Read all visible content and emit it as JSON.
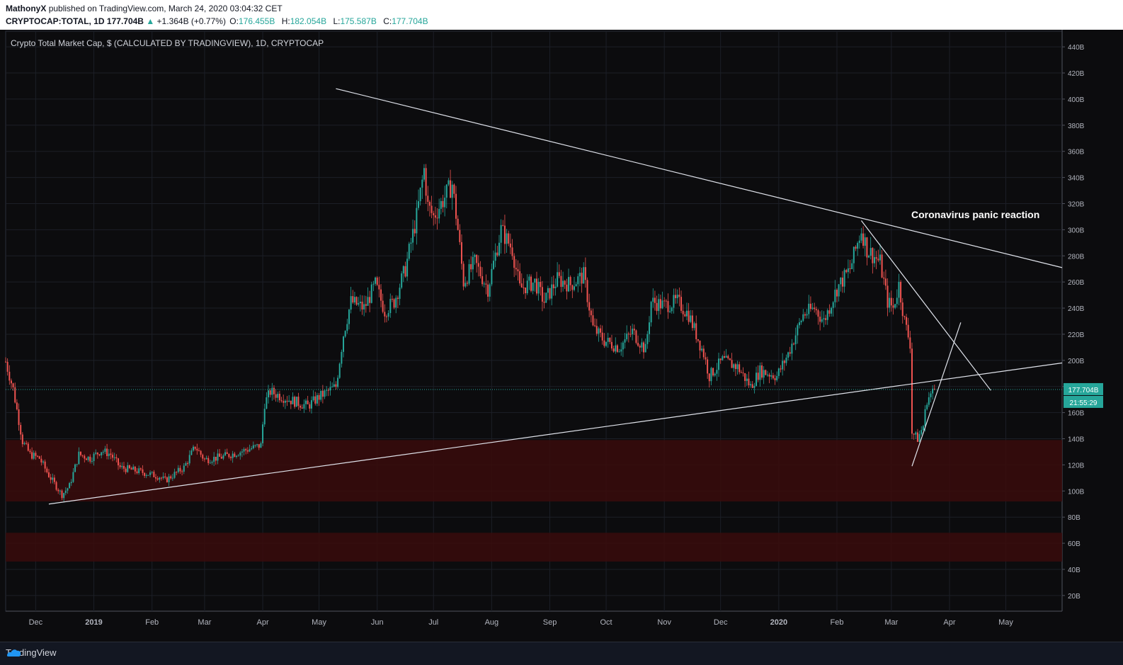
{
  "header": {
    "author": "MathonyX",
    "published": "published on TradingView.com, March 24, 2020 03:04:32 CET",
    "symbol": "CRYPTOCAP:TOTAL, 1D",
    "last": "177.704B",
    "arrow": "▲",
    "change": "+1.364B (+0.77%)",
    "o_label": "O:",
    "o_value": "176.455B",
    "h_label": "H:",
    "h_value": "182.054B",
    "l_label": "L:",
    "l_value": "175.587B",
    "c_label": "C:",
    "c_value": "177.704B"
  },
  "footer": {
    "brand": "TradingView"
  },
  "colors": {
    "up": "#26a69a",
    "down": "#ef5350",
    "zone": "#3a0c0c",
    "price_line": "#26a69a",
    "trendline": "#e0e3eb"
  },
  "chart_data": {
    "type": "candlestick",
    "title": "Crypto Total Market Cap, $ (CALCULATED BY TRADINGVIEW), 1D, CRYPTOCAP",
    "x_ticks": [
      "Dec",
      "2019",
      "Feb",
      "Mar",
      "Apr",
      "May",
      "Jun",
      "Jul",
      "Aug",
      "Sep",
      "Oct",
      "Nov",
      "Dec",
      "2020",
      "Feb",
      "Mar",
      "Apr",
      "May"
    ],
    "y_ticks": [
      "440B",
      "420B",
      "400B",
      "380B",
      "360B",
      "340B",
      "320B",
      "300B",
      "280B",
      "260B",
      "240B",
      "220B",
      "200B",
      "180B",
      "160B",
      "140B",
      "120B",
      "100B",
      "80B",
      "60B",
      "40B",
      "20B"
    ],
    "y_unit": "B",
    "ylim": [
      8,
      452
    ],
    "x_range": [
      "2018-11-15",
      "2020-05-31"
    ],
    "last_price_label": "177.704B",
    "countdown_label": "21:55:29",
    "last_price": 177.704,
    "annotation": "Coronavirus panic reaction",
    "zones": [
      {
        "from": 92,
        "to": 139
      },
      {
        "from": 46,
        "to": 68
      }
    ],
    "trendlines": [
      {
        "from": [
          "2019-05-10",
          408
        ],
        "to": [
          "2020-05-31",
          271
        ]
      },
      {
        "from": [
          "2018-12-08",
          90
        ],
        "to": [
          "2020-05-31",
          198
        ]
      },
      {
        "from": [
          "2020-02-14",
          307
        ],
        "to": [
          "2020-04-23",
          177
        ]
      },
      {
        "from": [
          "2020-03-12",
          119
        ],
        "to": [
          "2020-04-07",
          229
        ]
      }
    ],
    "price_path": [
      [
        "2018-11-15",
        199
      ],
      [
        "2018-11-19",
        178
      ],
      [
        "2018-11-24",
        138
      ],
      [
        "2018-11-28",
        128
      ],
      [
        "2018-12-03",
        125
      ],
      [
        "2018-12-08",
        112
      ],
      [
        "2018-12-15",
        97
      ],
      [
        "2018-12-19",
        104
      ],
      [
        "2018-12-24",
        128
      ],
      [
        "2018-12-30",
        125
      ],
      [
        "2019-01-05",
        131
      ],
      [
        "2019-01-10",
        128
      ],
      [
        "2019-01-15",
        118
      ],
      [
        "2019-01-25",
        115
      ],
      [
        "2019-02-05",
        111
      ],
      [
        "2019-02-08",
        108
      ],
      [
        "2019-02-18",
        118
      ],
      [
        "2019-02-24",
        134
      ],
      [
        "2019-03-01",
        124
      ],
      [
        "2019-03-10",
        126
      ],
      [
        "2019-03-20",
        130
      ],
      [
        "2019-03-31",
        135
      ],
      [
        "2019-04-02",
        167
      ],
      [
        "2019-04-05",
        176
      ],
      [
        "2019-04-15",
        170
      ],
      [
        "2019-04-25",
        165
      ],
      [
        "2019-05-01",
        172
      ],
      [
        "2019-05-10",
        180
      ],
      [
        "2019-05-14",
        220
      ],
      [
        "2019-05-18",
        245
      ],
      [
        "2019-05-25",
        240
      ],
      [
        "2019-05-31",
        258
      ],
      [
        "2019-06-05",
        238
      ],
      [
        "2019-06-10",
        245
      ],
      [
        "2019-06-16",
        270
      ],
      [
        "2019-06-22",
        310
      ],
      [
        "2019-06-26",
        346
      ],
      [
        "2019-06-28",
        318
      ],
      [
        "2019-07-01",
        310
      ],
      [
        "2019-07-07",
        325
      ],
      [
        "2019-07-11",
        335
      ],
      [
        "2019-07-14",
        300
      ],
      [
        "2019-07-17",
        260
      ],
      [
        "2019-07-23",
        275
      ],
      [
        "2019-07-30",
        255
      ],
      [
        "2019-08-06",
        300
      ],
      [
        "2019-08-12",
        285
      ],
      [
        "2019-08-16",
        255
      ],
      [
        "2019-08-24",
        260
      ],
      [
        "2019-08-29",
        245
      ],
      [
        "2019-09-05",
        262
      ],
      [
        "2019-09-12",
        258
      ],
      [
        "2019-09-19",
        265
      ],
      [
        "2019-09-24",
        225
      ],
      [
        "2019-09-30",
        215
      ],
      [
        "2019-10-08",
        210
      ],
      [
        "2019-10-15",
        222
      ],
      [
        "2019-10-22",
        208
      ],
      [
        "2019-10-25",
        245
      ],
      [
        "2019-11-01",
        242
      ],
      [
        "2019-11-08",
        245
      ],
      [
        "2019-11-14",
        235
      ],
      [
        "2019-11-22",
        205
      ],
      [
        "2019-11-25",
        188
      ],
      [
        "2019-12-02",
        200
      ],
      [
        "2019-12-10",
        195
      ],
      [
        "2019-12-17",
        180
      ],
      [
        "2019-12-22",
        192
      ],
      [
        "2019-12-31",
        188
      ],
      [
        "2020-01-06",
        205
      ],
      [
        "2020-01-14",
        235
      ],
      [
        "2020-01-20",
        240
      ],
      [
        "2020-01-25",
        230
      ],
      [
        "2020-02-01",
        255
      ],
      [
        "2020-02-08",
        270
      ],
      [
        "2020-02-14",
        300
      ],
      [
        "2020-02-17",
        285
      ],
      [
        "2020-02-24",
        275
      ],
      [
        "2020-02-28",
        245
      ],
      [
        "2020-03-02",
        240
      ],
      [
        "2020-03-05",
        258
      ],
      [
        "2020-03-08",
        230
      ],
      [
        "2020-03-11",
        213
      ],
      [
        "2020-03-12",
        145
      ],
      [
        "2020-03-15",
        140
      ],
      [
        "2020-03-18",
        150
      ],
      [
        "2020-03-20",
        170
      ],
      [
        "2020-03-24",
        177.7
      ]
    ]
  }
}
